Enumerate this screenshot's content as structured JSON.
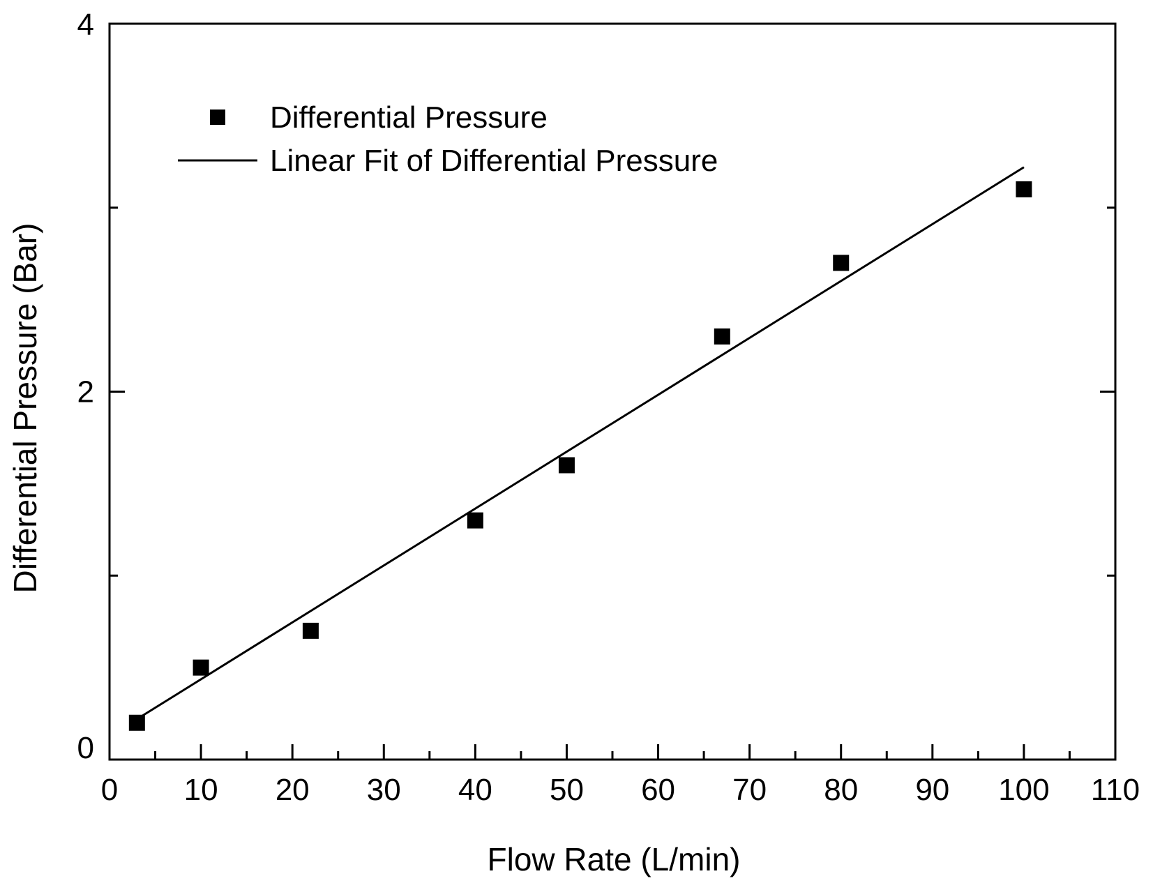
{
  "chart_data": {
    "type": "scatter",
    "title": "",
    "xlabel": "Flow Rate (L/min)",
    "ylabel": "Differential Pressure (Bar)",
    "xlim": [
      0,
      110
    ],
    "ylim": [
      0,
      4
    ],
    "x_ticks_major": [
      0,
      10,
      20,
      30,
      40,
      50,
      60,
      70,
      80,
      90,
      100,
      110
    ],
    "x_tick_labels": [
      "0",
      "10",
      "20",
      "30",
      "40",
      "50",
      "60",
      "70",
      "80",
      "90",
      "100",
      "110"
    ],
    "y_ticks_major": [
      0,
      2,
      4
    ],
    "y_tick_labels": [
      "0",
      "2",
      "4"
    ],
    "y_ticks_minor": [
      1,
      3
    ],
    "grid": false,
    "legend_position": "top-left",
    "series": [
      {
        "name": "Differential Pressure",
        "kind": "markers",
        "marker": "square",
        "color": "#000000",
        "x": [
          3,
          10,
          22,
          40,
          50,
          67,
          80,
          100
        ],
        "y": [
          0.2,
          0.5,
          0.7,
          1.3,
          1.6,
          2.3,
          2.7,
          3.1
        ]
      },
      {
        "name": "Linear Fit of Differential Pressure",
        "kind": "line",
        "color": "#000000",
        "x": [
          3,
          100
        ],
        "y": [
          0.22,
          3.22
        ]
      }
    ]
  }
}
